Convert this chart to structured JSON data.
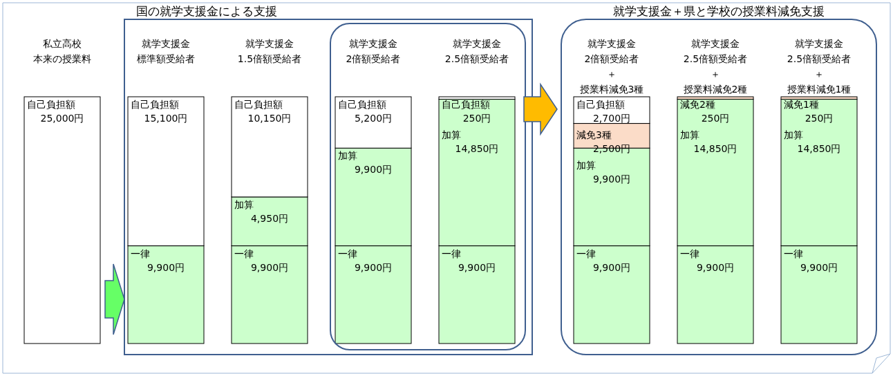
{
  "chart_data": {
    "type": "bar",
    "stacked": true,
    "categories": [
      "私立高校本来の授業料",
      "就学支援金標準額受給者",
      "就学支援金1.5倍額受給者",
      "就学支援金2倍額受給者",
      "就学支援金2.5倍額受給者",
      "就学支援金2倍額受給者＋授業料減免3種",
      "就学支援金2.5倍額受給者＋授業料減免2種",
      "就学支援金2.5倍額受給者＋授業料減免1種"
    ],
    "series": [
      {
        "color": "#ccffcc",
        "values": [
          null,
          9900,
          9900,
          9900,
          9900,
          9900,
          9900,
          9900
        ],
        "value_labels": [
          null,
          "一律\n9,900円",
          "一律\n9,900円",
          "一律\n9,900円",
          "一律\n9,900円",
          "一律\n9,900円",
          "一律\n9,900円",
          "一律\n9,900円"
        ]
      },
      {
        "color": "#ccffcc",
        "values": [
          null,
          null,
          4950,
          9900,
          14850,
          9900,
          14850,
          14850
        ],
        "value_labels": [
          null,
          null,
          "加算\n4,950円",
          "加算\n9,900円",
          "加算\n14,850円",
          "加算\n9,900円",
          "加算\n14,850円",
          "加算\n14,850円"
        ]
      },
      {
        "color": "#fbdcc8",
        "values": [
          null,
          null,
          null,
          null,
          null,
          2500,
          250,
          250
        ],
        "value_labels": [
          null,
          null,
          null,
          null,
          null,
          "減免3種\n2,500円",
          "減免2種\n250円",
          "減免1種\n250円"
        ]
      },
      {
        "color": "#ffffff",
        "values": [
          25000,
          15100,
          10150,
          5200,
          250,
          2700,
          null,
          null
        ],
        "value_labels": [
          "自己負担額\n25,000円",
          "自己負担額\n15,100円",
          "自己負担額\n10,150円",
          "自己負担額\n5,200円",
          "自己負担額\n250円",
          "自己負担額\n2,700円",
          null,
          null
        ]
      }
    ],
    "annotations": [
      "国の就学支援金による支援",
      "就学支援金＋県と学校の授業料減免支援"
    ]
  }
}
